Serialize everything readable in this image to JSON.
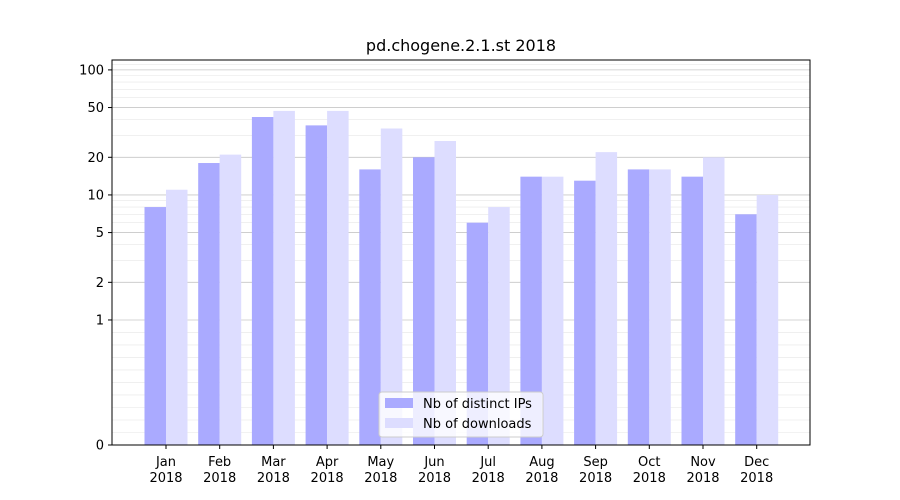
{
  "chart_data": {
    "type": "bar",
    "title": "pd.chogene.2.1.st 2018",
    "xlabel": "",
    "ylabel": "",
    "yscale": "symlog",
    "ylim": [
      0,
      120
    ],
    "yticks": [
      0,
      1,
      2,
      5,
      10,
      20,
      50,
      100
    ],
    "categories": [
      "Jan\n2018",
      "Feb\n2018",
      "Mar\n2018",
      "Apr\n2018",
      "May\n2018",
      "Jun\n2018",
      "Jul\n2018",
      "Aug\n2018",
      "Sep\n2018",
      "Oct\n2018",
      "Nov\n2018",
      "Dec\n2018"
    ],
    "category_lines": [
      [
        "Jan",
        "2018"
      ],
      [
        "Feb",
        "2018"
      ],
      [
        "Mar",
        "2018"
      ],
      [
        "Apr",
        "2018"
      ],
      [
        "May",
        "2018"
      ],
      [
        "Jun",
        "2018"
      ],
      [
        "Jul",
        "2018"
      ],
      [
        "Aug",
        "2018"
      ],
      [
        "Sep",
        "2018"
      ],
      [
        "Oct",
        "2018"
      ],
      [
        "Nov",
        "2018"
      ],
      [
        "Dec",
        "2018"
      ]
    ],
    "series": [
      {
        "name": "Nb of distinct IPs",
        "color": "#aaaaff",
        "values": [
          8,
          18,
          42,
          36,
          16,
          20,
          6,
          14,
          13,
          16,
          14,
          7
        ]
      },
      {
        "name": "Nb of downloads",
        "color": "#ddddff",
        "values": [
          11,
          21,
          47,
          47,
          34,
          27,
          8,
          14,
          22,
          16,
          20,
          10
        ]
      }
    ],
    "grid": true,
    "legend_position": "bottom-center"
  }
}
